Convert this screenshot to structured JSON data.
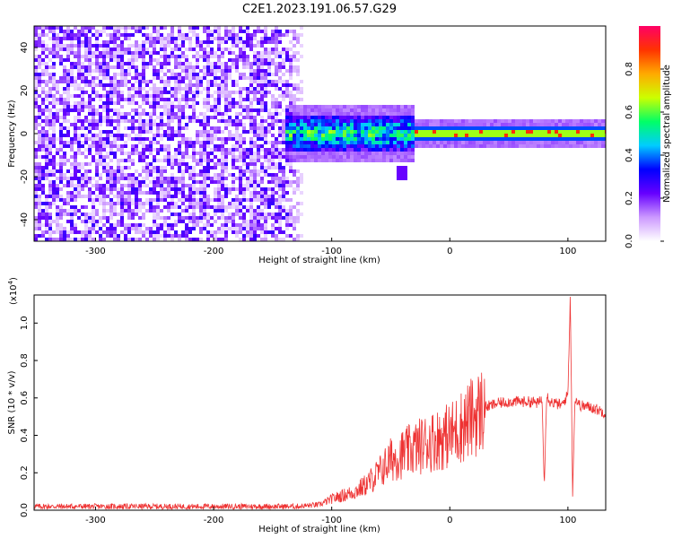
{
  "chart_data": [
    {
      "type": "heatmap",
      "title": "C2E1.2023.191.06.57.G29",
      "xlabel": "Height of straight line (km)",
      "ylabel": "Frequency (Hz)",
      "xlim": [
        -352,
        132
      ],
      "ylim": [
        -50,
        50
      ],
      "xticks": [
        -300,
        -200,
        -100,
        0,
        100
      ],
      "yticks": [
        -40,
        -20,
        0,
        20,
        40
      ],
      "noise_region_x": [
        -352,
        -122
      ],
      "signal_band": {
        "x": [
          -140,
          132
        ],
        "center_freq": 0,
        "half_width": 4
      },
      "tail_feature": {
        "x": -40,
        "freq": -18
      },
      "colorbar": {
        "label": "Normalized spectral amplitude",
        "ticks": [
          "0.0",
          "0.2",
          "0.4",
          "0.6",
          "0.8"
        ],
        "range": [
          0,
          1
        ],
        "colors": [
          "#ffffff",
          "#cc99ff",
          "#6600ff",
          "#0000ff",
          "#00ccff",
          "#00ff66",
          "#ccff00",
          "#ffaa00",
          "#ff3300",
          "#ff0066"
        ]
      }
    },
    {
      "type": "line",
      "xlabel": "Height of straight line (km)",
      "ylabel": "SNR (10 * v/v)",
      "scale_label": "(x10",
      "scale_exp": "4",
      "scale_close": ")",
      "xlim": [
        -352,
        132
      ],
      "ylim": [
        0,
        1.15
      ],
      "xticks": [
        -300,
        -200,
        -100,
        0,
        100
      ],
      "yticks": [
        "0.0",
        "0.2",
        "0.4",
        "0.6",
        "0.8",
        "1.0"
      ],
      "color": "#ee3333",
      "series": [
        {
          "x": [
            -352,
            -300,
            -200,
            -130,
            -110,
            -100,
            -90,
            -80,
            -70,
            -60,
            -50,
            -40,
            -30,
            -20,
            -10,
            0,
            10,
            20,
            30,
            40,
            50,
            60,
            70,
            75,
            78,
            80,
            82,
            85,
            90,
            95,
            100,
            102,
            104,
            106,
            110,
            120,
            132
          ],
          "values": [
            0.02,
            0.02,
            0.02,
            0.02,
            0.03,
            0.06,
            0.08,
            0.1,
            0.14,
            0.2,
            0.27,
            0.3,
            0.33,
            0.36,
            0.38,
            0.4,
            0.45,
            0.5,
            0.55,
            0.57,
            0.58,
            0.58,
            0.58,
            0.57,
            0.6,
            0.15,
            0.62,
            0.58,
            0.57,
            0.56,
            0.62,
            1.15,
            0.1,
            0.6,
            0.56,
            0.55,
            0.52
          ]
        }
      ]
    }
  ]
}
